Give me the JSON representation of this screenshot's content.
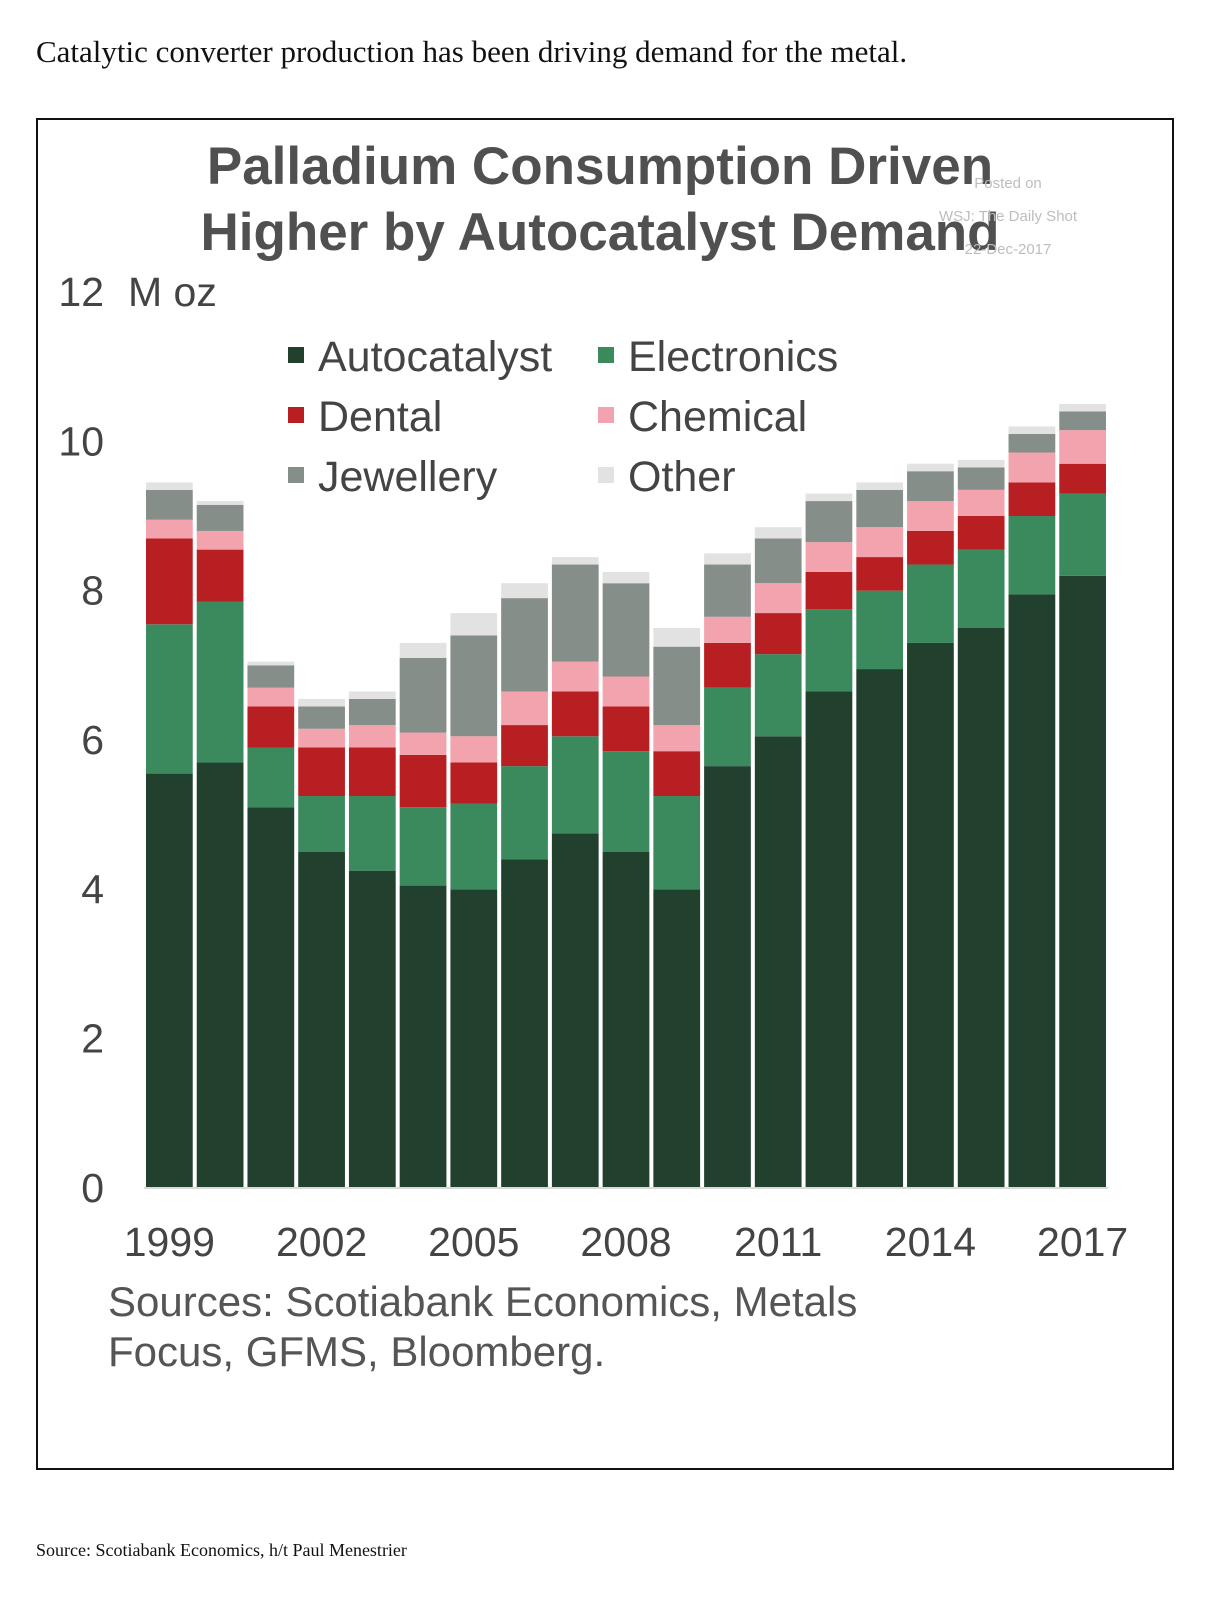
{
  "caption": "Catalytic converter production has been driving demand for the metal.",
  "footnote": "Source: Scotiabank Economics, h/t Paul Menestrier",
  "chart_data": {
    "type": "bar",
    "stacked": true,
    "title": "Palladium Consumption Driven Higher by Autocatalyst Demand",
    "title_lines": [
      "Palladium Consumption Driven",
      "Higher by Autocatalyst Demand"
    ],
    "ylabel": "M oz",
    "xlabel": "",
    "ylim": [
      0,
      12
    ],
    "yticks": [
      0,
      2,
      4,
      6,
      8,
      10,
      12
    ],
    "xtick_labels": [
      "1999",
      "2002",
      "2005",
      "2008",
      "2011",
      "2014",
      "2017"
    ],
    "grid": false,
    "legend_position": "top-left",
    "categories": [
      "1999",
      "2000",
      "2001",
      "2002",
      "2003",
      "2004",
      "2005",
      "2006",
      "2007",
      "2008",
      "2009",
      "2010",
      "2011",
      "2012",
      "2013",
      "2014",
      "2015",
      "2016",
      "2017"
    ],
    "series": [
      {
        "name": "Autocatalyst",
        "color": "#21402e",
        "values": [
          5.55,
          5.7,
          5.1,
          4.5,
          4.25,
          4.05,
          4.0,
          4.4,
          4.75,
          4.5,
          4.0,
          5.65,
          6.05,
          6.65,
          6.95,
          7.3,
          7.5,
          7.95,
          8.2
        ]
      },
      {
        "name": "Electronics",
        "color": "#3a8a5e",
        "values": [
          2.0,
          2.15,
          0.8,
          0.75,
          1.0,
          1.05,
          1.15,
          1.25,
          1.3,
          1.35,
          1.25,
          1.05,
          1.1,
          1.1,
          1.05,
          1.05,
          1.05,
          1.05,
          1.1
        ]
      },
      {
        "name": "Dental",
        "color": "#b81f23",
        "values": [
          1.15,
          0.7,
          0.55,
          0.65,
          0.65,
          0.7,
          0.55,
          0.55,
          0.6,
          0.6,
          0.6,
          0.6,
          0.55,
          0.5,
          0.45,
          0.45,
          0.45,
          0.45,
          0.4
        ]
      },
      {
        "name": "Chemical",
        "color": "#f3a3ad",
        "values": [
          0.25,
          0.25,
          0.25,
          0.25,
          0.3,
          0.3,
          0.35,
          0.45,
          0.4,
          0.4,
          0.35,
          0.35,
          0.4,
          0.4,
          0.4,
          0.4,
          0.35,
          0.4,
          0.45
        ]
      },
      {
        "name": "Jewellery",
        "color": "#858e89",
        "values": [
          0.4,
          0.35,
          0.3,
          0.3,
          0.35,
          1.0,
          1.35,
          1.25,
          1.3,
          1.25,
          1.05,
          0.7,
          0.6,
          0.55,
          0.5,
          0.4,
          0.3,
          0.25,
          0.25
        ]
      },
      {
        "name": "Other",
        "color": "#e2e2e2",
        "values": [
          0.1,
          0.05,
          0.05,
          0.1,
          0.1,
          0.2,
          0.3,
          0.2,
          0.1,
          0.15,
          0.25,
          0.15,
          0.15,
          0.1,
          0.1,
          0.1,
          0.1,
          0.1,
          0.1
        ]
      }
    ],
    "watermark": [
      "Posted on",
      "WSJ: The Daily Shot",
      "22-Dec-2017"
    ],
    "source_lines": [
      "Sources: Scotiabank Economics, Metals",
      "Focus, GFMS, Bloomberg."
    ]
  }
}
